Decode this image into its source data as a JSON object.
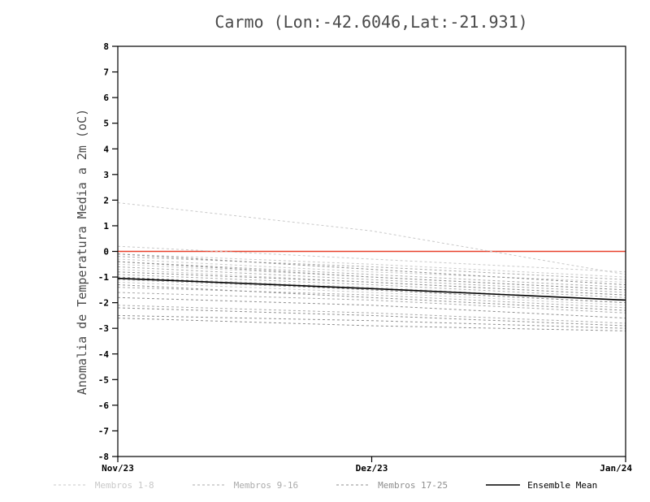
{
  "chart_data": {
    "type": "line",
    "title": "Carmo (Lon:-42.6046,Lat:-21.931)",
    "xlabel": "",
    "ylabel": "Anomalia de Temperatura Media a 2m (oC)",
    "x_tick_labels": [
      "Nov/23",
      "Dez/23",
      "Jan/24"
    ],
    "x": [
      0,
      1,
      2
    ],
    "ylim": [
      -8,
      8
    ],
    "y_ticks": [
      -8,
      -7,
      -6,
      -5,
      -4,
      -3,
      -2,
      -1,
      0,
      1,
      2,
      3,
      4,
      5,
      6,
      7,
      8
    ],
    "grid": false,
    "legend_position": "bottom",
    "zero_line": {
      "value": 0,
      "color": "#e8402a"
    },
    "frame_color": "#000000",
    "groups": [
      {
        "name": "Membros 1-8",
        "color": "#c9c9c9",
        "style": "dashed",
        "series": [
          [
            1.9,
            0.8,
            -0.9
          ],
          [
            0.2,
            -0.3,
            -0.8
          ],
          [
            -0.1,
            -0.5,
            -1.0
          ],
          [
            -0.3,
            -0.8,
            -1.2
          ],
          [
            -0.5,
            -1.0,
            -1.5
          ],
          [
            -0.7,
            -1.2,
            -1.7
          ],
          [
            -1.0,
            -1.4,
            -1.9
          ],
          [
            -1.2,
            -1.6,
            -2.1
          ]
        ]
      },
      {
        "name": "Membros 9-16",
        "color": "#ababab",
        "style": "dashed",
        "series": [
          [
            -0.2,
            -0.6,
            -1.1
          ],
          [
            -0.4,
            -0.9,
            -1.4
          ],
          [
            -0.6,
            -1.1,
            -1.6
          ],
          [
            -0.9,
            -1.3,
            -1.8
          ],
          [
            -1.1,
            -1.5,
            -2.0
          ],
          [
            -1.4,
            -1.7,
            -2.2
          ],
          [
            -1.6,
            -1.9,
            -2.4
          ],
          [
            -2.1,
            -2.4,
            -2.8
          ]
        ]
      },
      {
        "name": "Membros 17-25",
        "color": "#8f8f8f",
        "style": "dashed",
        "series": [
          [
            -0.1,
            -0.7,
            -1.3
          ],
          [
            -0.4,
            -1.0,
            -1.5
          ],
          [
            -0.8,
            -1.2,
            -1.7
          ],
          [
            -1.0,
            -1.5,
            -2.0
          ],
          [
            -1.3,
            -1.8,
            -2.3
          ],
          [
            -1.8,
            -2.1,
            -2.6
          ],
          [
            -2.2,
            -2.5,
            -2.9
          ],
          [
            -2.5,
            -2.7,
            -3.0
          ],
          [
            -2.6,
            -2.9,
            -3.1
          ]
        ]
      }
    ],
    "ensemble_mean": {
      "name": "Ensemble Mean",
      "color": "#000000",
      "style": "solid",
      "values": [
        -1.05,
        -1.45,
        -1.9
      ]
    }
  }
}
